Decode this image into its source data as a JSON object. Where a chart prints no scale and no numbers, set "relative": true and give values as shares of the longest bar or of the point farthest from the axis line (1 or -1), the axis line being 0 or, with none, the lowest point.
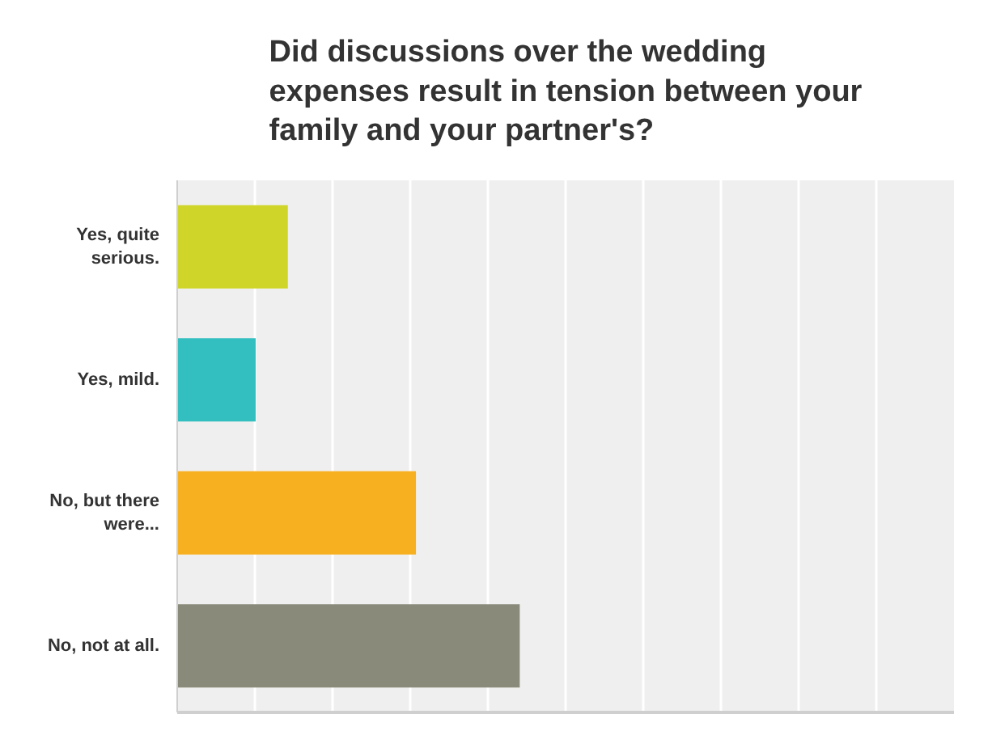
{
  "chart_data": {
    "type": "bar",
    "orientation": "horizontal",
    "relative": true,
    "title": "Did discussions over the wedding expenses result in tension between your family and your partner's?",
    "categories": [
      "Yes, quite serious.",
      "Yes, mild.",
      "No, but there were...",
      "No, not at all."
    ],
    "values": [
      0.323,
      0.229,
      0.697,
      1
    ],
    "colors": [
      "#d0d52a",
      "#33bec0",
      "#f7b01f",
      "#8a8a7a"
    ],
    "grid": "x"
  }
}
